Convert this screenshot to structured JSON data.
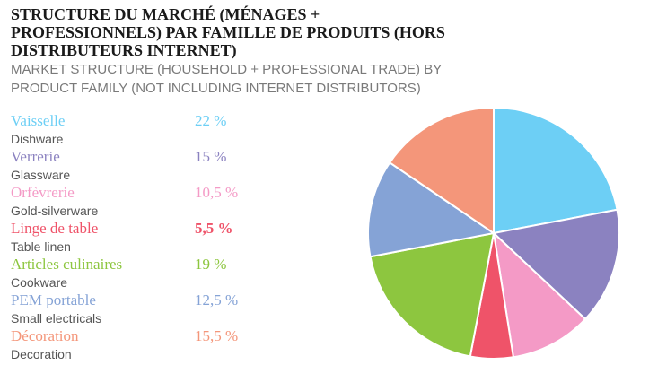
{
  "title_fr": "STRUCTURE DU MARCHÉ (MÉNAGES + PROFESSIONNELS) PAR FAMILLE DE PRODUITS (HORS DISTRIBUTEURS INTERNET)",
  "title_en": "MARKET STRUCTURE (HOUSEHOLD + PROFESSIONAL TRADE) BY PRODUCT FAMILY (NOT INCLUDING INTERNET DISTRIBUTORS)",
  "legend": [
    {
      "fr": "Vaisselle",
      "en": "Dishware",
      "value_label": "22 %",
      "color": "#6dcff5",
      "bold": false
    },
    {
      "fr": "Verrerie",
      "en": "Glassware",
      "value_label": "15 %",
      "color": "#8b82c0",
      "bold": false
    },
    {
      "fr": "Orfèvrerie",
      "en": "Gold-silverware",
      "value_label": "10,5 %",
      "color": "#f49ac6",
      "bold": false
    },
    {
      "fr": "Linge de table",
      "en": "Table linen",
      "value_label": "5,5 %",
      "color": "#ef5369",
      "bold": true
    },
    {
      "fr": "Articles culinaires",
      "en": "Cookware",
      "value_label": "19 %",
      "color": "#8dc63f",
      "bold": false
    },
    {
      "fr": "PEM portable",
      "en": "Small electricals",
      "value_label": "12,5 %",
      "color": "#85a3d6",
      "bold": false
    },
    {
      "fr": "Décoration",
      "en": "Decoration",
      "value_label": "15,5 %",
      "color": "#f4967a",
      "bold": false
    }
  ],
  "chart_data": {
    "type": "pie",
    "categories": [
      "Vaisselle",
      "Verrerie",
      "Orfèvrerie",
      "Linge de table",
      "Articles culinaires",
      "PEM portable",
      "Décoration"
    ],
    "values": [
      22,
      15,
      10.5,
      5.5,
      19,
      12.5,
      15.5
    ],
    "colors": [
      "#6dcff5",
      "#8b82c0",
      "#f49ac6",
      "#ef5369",
      "#8dc63f",
      "#85a3d6",
      "#f4967a"
    ],
    "start": "12 o'clock",
    "direction": "clockwise"
  }
}
